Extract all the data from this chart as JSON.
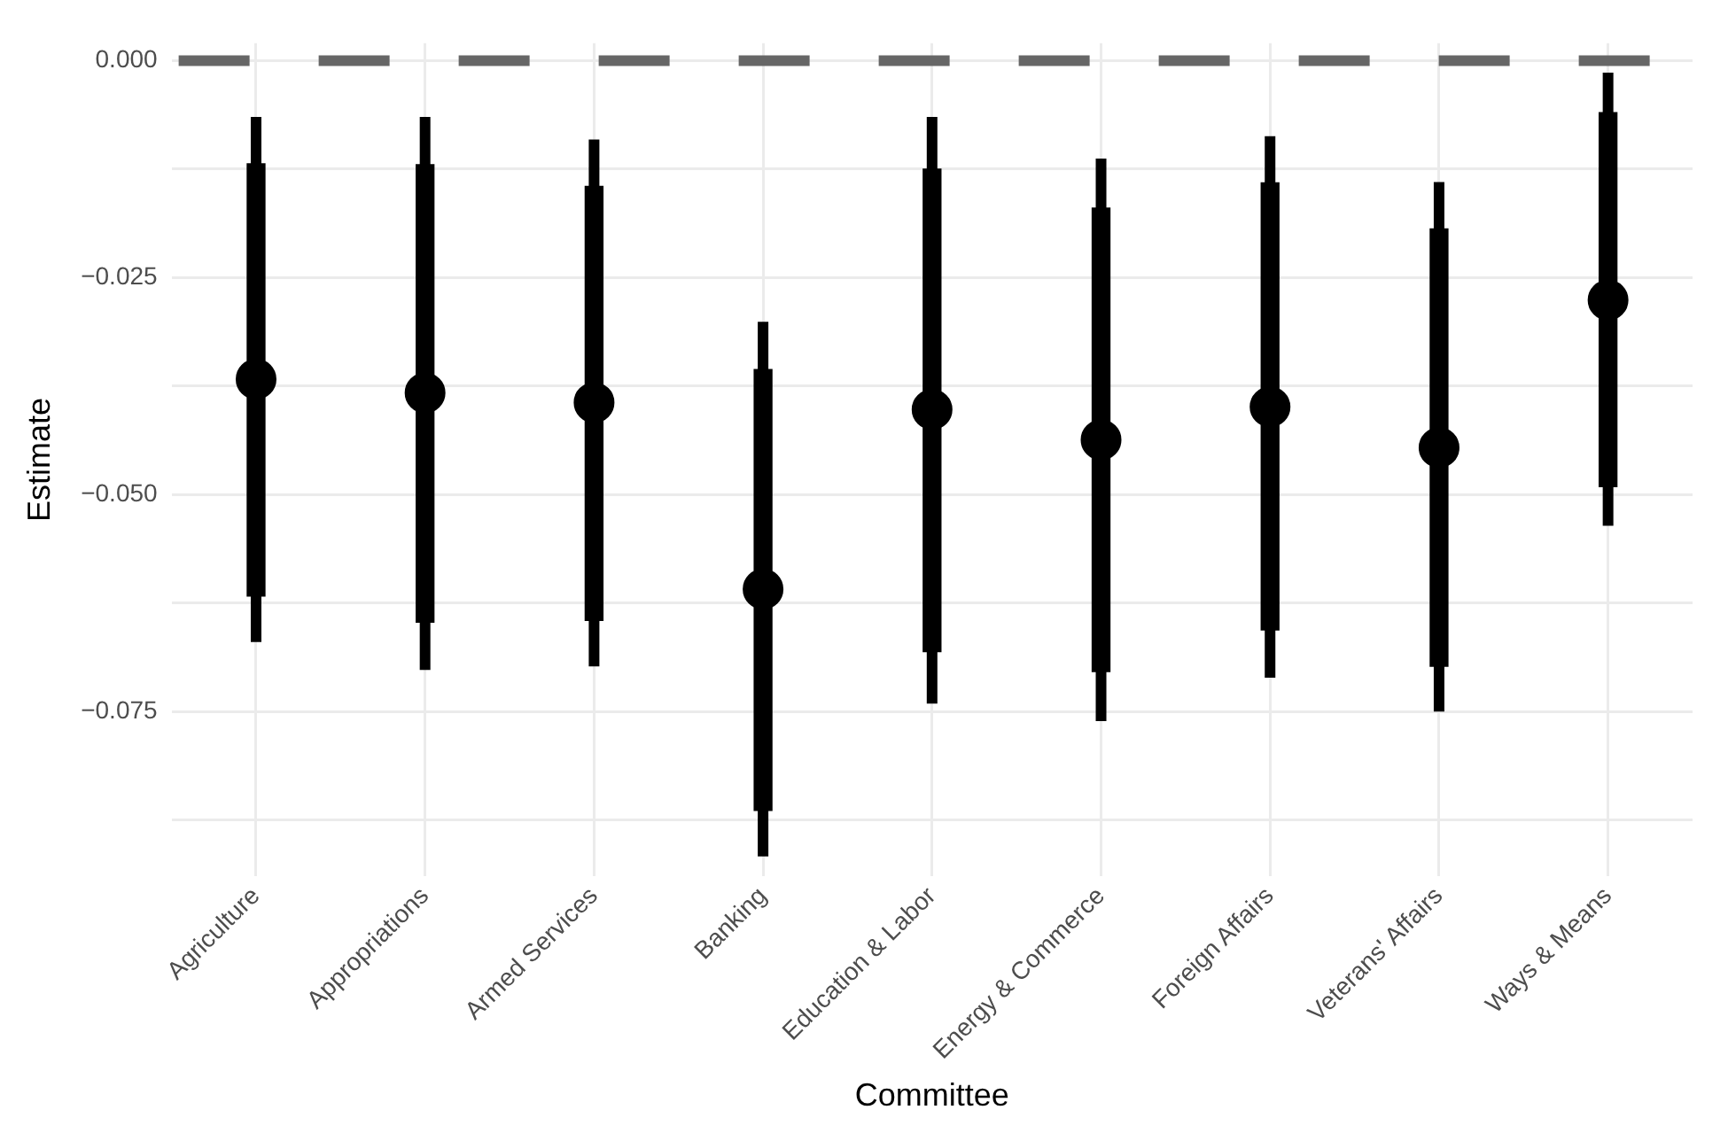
{
  "chart_data": {
    "type": "scatter",
    "xlabel": "Committee",
    "ylabel": "Estimate",
    "categories": [
      "Agriculture",
      "Appropriations",
      "Armed Services",
      "Banking",
      "Education & Labor",
      "Energy & Commerce",
      "Foreign Affairs",
      "Veterans' Affairs",
      "Ways & Means"
    ],
    "series": [
      {
        "type": "bar",
        "color": "#000000",
        "base": [
          -0.0617,
          -0.0647,
          -0.0645,
          -0.0864,
          -0.0681,
          -0.0704,
          -0.0656,
          -0.0698,
          -0.0491
        ],
        "values": [
          0.0498,
          0.0527,
          0.05,
          0.0508,
          0.0556,
          0.0534,
          0.0515,
          0.0504,
          0.0431
        ]
      },
      {
        "color": "#000000",
        "values": [
          -0.0367,
          -0.0383,
          -0.0394,
          -0.0609,
          -0.0402,
          -0.0437,
          -0.0399,
          -0.0446,
          -0.0276
        ],
        "errors": [
          [
            -0.067,
            -0.0065
          ],
          [
            -0.0702,
            -0.0065
          ],
          [
            -0.0698,
            -0.0091
          ],
          [
            -0.0917,
            -0.0301
          ],
          [
            -0.0741,
            -0.0065
          ],
          [
            -0.0761,
            -0.0113
          ],
          [
            -0.0711,
            -0.0087
          ],
          [
            -0.075,
            -0.014
          ],
          [
            -0.0536,
            -0.0014
          ]
        ]
      }
    ],
    "ylim": [
      -0.094,
      0.002
    ],
    "yticks": [
      {
        "value": -0.0875,
        "label": null
      },
      -0.075,
      {
        "value": -0.0625,
        "label": null
      },
      {
        "value": -0.05,
        "label": "−0.050"
      },
      {
        "value": -0.0375,
        "label": null
      },
      -0.025,
      {
        "value": -0.0125,
        "label": null
      },
      {
        "value": 0,
        "label": "0.000"
      }
    ],
    "ref_lines": [
      {
        "axis": "y",
        "value": 0,
        "color": "#666666",
        "line_style": "dashed"
      }
    ],
    "grid": true,
    "marker": "circle"
  }
}
